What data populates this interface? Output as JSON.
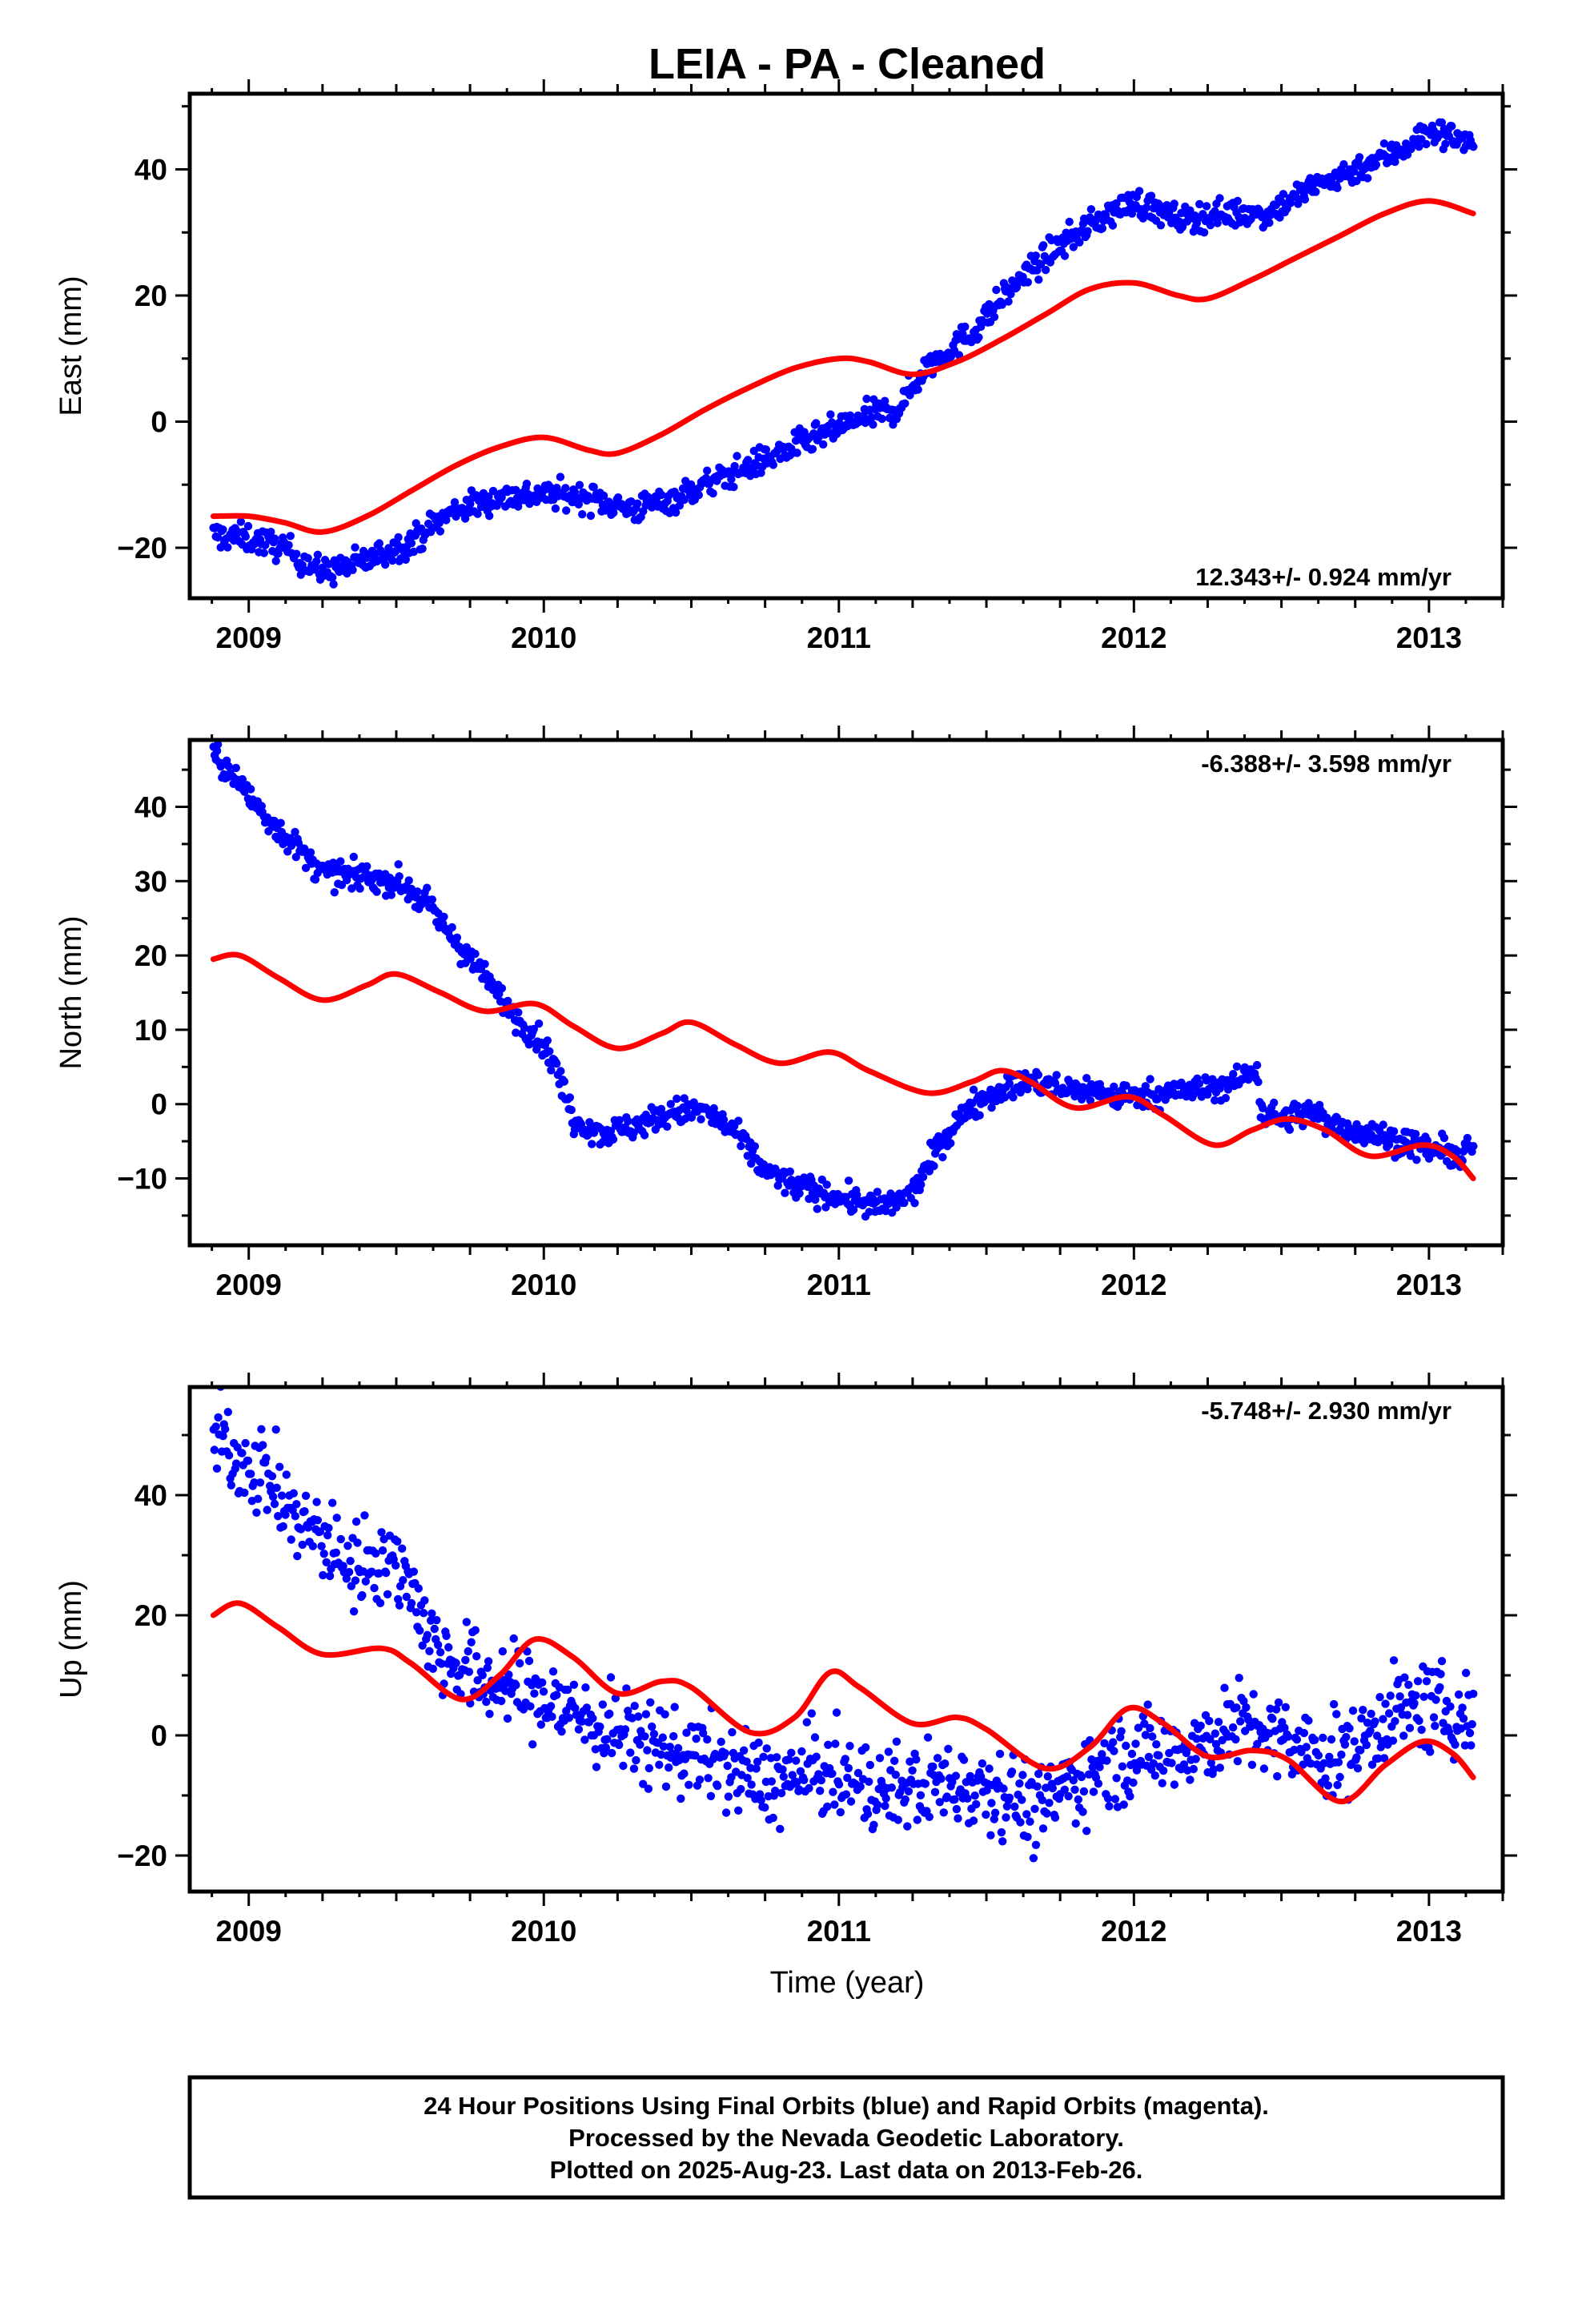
{
  "title": "LEIA  - PA - Cleaned",
  "xlabel": "Time (year)",
  "footer": {
    "lines": [
      "24 Hour Positions Using Final Orbits (blue) and Rapid Orbits (magenta).",
      "Processed by the Nevada Geodetic Laboratory.",
      "Plotted on 2025-Aug-23. Last data on 2013-Feb-26."
    ]
  },
  "colors": {
    "data": "#0000ff",
    "model": "#ff0000",
    "frame": "#000000"
  },
  "chart_data": [
    {
      "type": "scatter",
      "ylabel": "East (mm)",
      "rate_label": "12.343+/- 0.924 mm/yr",
      "xlim": [
        2008.8,
        2013.25
      ],
      "ylim": [
        -28,
        52
      ],
      "xticks": [
        2009,
        2010,
        2011,
        2012,
        2013
      ],
      "xtick_labels": [
        "2009",
        "2010",
        "2011",
        "2012",
        "2013"
      ],
      "yticks": [
        -20,
        0,
        20,
        40
      ],
      "ytick_labels": [
        "−20",
        "0",
        "20",
        "40"
      ],
      "series": [
        {
          "kind": "points",
          "x": [
            2008.88,
            2009.0,
            2009.12,
            2009.25,
            2009.4,
            2009.55,
            2009.7,
            2009.85,
            2010.0,
            2010.15,
            2010.3,
            2010.45,
            2010.6,
            2010.75,
            2010.9,
            2011.0,
            2011.1,
            2011.2,
            2011.3,
            2011.45,
            2011.6,
            2011.75,
            2011.88,
            2012.0,
            2012.15,
            2012.3,
            2012.45,
            2012.6,
            2012.75,
            2012.9,
            2013.0,
            2013.1,
            2013.15
          ],
          "y": [
            -18,
            -18.5,
            -20,
            -24,
            -22,
            -19,
            -14,
            -12,
            -11.5,
            -12,
            -14,
            -12,
            -9,
            -6,
            -3,
            -1,
            1,
            2,
            9,
            14,
            22,
            28,
            32,
            35,
            32,
            33,
            33,
            37,
            40,
            43,
            46,
            45,
            44
          ]
        },
        {
          "kind": "line",
          "x": [
            2008.88,
            2009.0,
            2009.12,
            2009.25,
            2009.4,
            2009.55,
            2009.7,
            2009.85,
            2010.0,
            2010.15,
            2010.25,
            2010.4,
            2010.55,
            2010.7,
            2010.85,
            2011.0,
            2011.1,
            2011.25,
            2011.4,
            2011.55,
            2011.7,
            2011.85,
            2012.0,
            2012.15,
            2012.25,
            2012.4,
            2012.55,
            2012.7,
            2012.85,
            2013.0,
            2013.15
          ],
          "y": [
            -15,
            -15,
            -16,
            -17.5,
            -15,
            -11,
            -7,
            -4,
            -2.5,
            -4.5,
            -5,
            -2,
            2,
            5.5,
            8.5,
            10,
            9.5,
            7.5,
            9.5,
            13,
            17,
            21,
            22,
            20,
            19.5,
            22.5,
            26,
            29.5,
            33,
            35,
            33
          ]
        }
      ]
    },
    {
      "type": "scatter",
      "ylabel": "North (mm)",
      "rate_label": "-6.388+/- 3.598 mm/yr",
      "xlim": [
        2008.8,
        2013.25
      ],
      "ylim": [
        -19,
        49
      ],
      "xticks": [
        2009,
        2010,
        2011,
        2012,
        2013
      ],
      "xtick_labels": [
        "2009",
        "2010",
        "2011",
        "2012",
        "2013"
      ],
      "yticks": [
        -10,
        0,
        10,
        20,
        30,
        40
      ],
      "ytick_labels": [
        "−10",
        "0",
        "10",
        "20",
        "30",
        "40"
      ],
      "series": [
        {
          "kind": "points",
          "x": [
            2008.88,
            2008.95,
            2009.05,
            2009.15,
            2009.25,
            2009.4,
            2009.5,
            2009.6,
            2009.7,
            2009.8,
            2009.9,
            2010.0,
            2010.05,
            2010.1,
            2010.2,
            2010.3,
            2010.45,
            2010.55,
            2010.65,
            2010.75,
            2010.85,
            2010.95,
            2011.05,
            2011.15,
            2011.25,
            2011.35,
            2011.45,
            2011.55,
            2011.65,
            2011.75,
            2011.85,
            2011.95,
            2012.1,
            2012.25,
            2012.35,
            2012.42,
            2012.43,
            2012.5,
            2012.6,
            2012.7,
            2012.8,
            2012.9,
            2013.0,
            2013.1,
            2013.15
          ],
          "y": [
            47,
            44,
            39,
            35,
            31,
            30.5,
            30,
            27,
            22,
            17,
            12,
            8,
            4,
            -2,
            -4,
            -3,
            -1,
            -1,
            -4,
            -9,
            -11,
            -12,
            -13,
            -14,
            -12,
            -5,
            0,
            2,
            3,
            2,
            2,
            1,
            1.5,
            2,
            3,
            5,
            -1,
            -2,
            -1,
            -3,
            -4,
            -5,
            -6,
            -7,
            -6
          ]
        },
        {
          "kind": "line",
          "x": [
            2008.88,
            2008.97,
            2009.1,
            2009.25,
            2009.4,
            2009.5,
            2009.65,
            2009.8,
            2009.97,
            2010.1,
            2010.25,
            2010.4,
            2010.5,
            2010.65,
            2010.8,
            2010.97,
            2011.1,
            2011.3,
            2011.45,
            2011.55,
            2011.65,
            2011.8,
            2011.98,
            2012.1,
            2012.27,
            2012.4,
            2012.52,
            2012.65,
            2012.8,
            2012.98,
            2013.08,
            2013.15
          ],
          "y": [
            19.5,
            20,
            17,
            14,
            16,
            17.5,
            15,
            12.5,
            13.5,
            10.5,
            7.5,
            9.5,
            11,
            8,
            5.5,
            7,
            4.5,
            1.5,
            3,
            4.5,
            3,
            -0.5,
            1,
            -1.5,
            -5.5,
            -3.5,
            -2,
            -3.5,
            -7,
            -5.5,
            -7,
            -10
          ]
        }
      ]
    },
    {
      "type": "scatter",
      "ylabel": "Up (mm)",
      "rate_label": "-5.748+/- 2.930 mm/yr",
      "xlim": [
        2008.8,
        2013.25
      ],
      "ylim": [
        -26,
        58
      ],
      "xticks": [
        2009,
        2010,
        2011,
        2012,
        2013
      ],
      "xtick_labels": [
        "2009",
        "2010",
        "2011",
        "2012",
        "2013"
      ],
      "yticks": [
        -20,
        0,
        20,
        40
      ],
      "ytick_labels": [
        "−20",
        "0",
        "20",
        "40"
      ],
      "series": [
        {
          "kind": "points",
          "x": [
            2008.88,
            2008.95,
            2009.05,
            2009.15,
            2009.25,
            2009.35,
            2009.45,
            2009.55,
            2009.62,
            2009.7,
            2009.8,
            2009.9,
            2010.0,
            2010.1,
            2010.2,
            2010.3,
            2010.4,
            2010.5,
            2010.6,
            2010.7,
            2010.8,
            2010.9,
            2011.0,
            2011.1,
            2011.2,
            2011.3,
            2011.4,
            2011.5,
            2011.6,
            2011.68,
            2011.75,
            2011.85,
            2011.95,
            2012.05,
            2012.15,
            2012.25,
            2012.35,
            2012.45,
            2012.55,
            2012.65,
            2012.75,
            2012.85,
            2012.95,
            2013.05,
            2013.15
          ],
          "y": [
            50,
            47,
            44,
            36,
            33,
            28,
            30,
            26,
            15,
            12,
            9,
            8,
            6,
            4,
            1,
            0,
            -2,
            -3,
            -5,
            -7,
            -8,
            -6,
            -7,
            -9,
            -9,
            -8,
            -8,
            -8,
            -10,
            -13,
            -9,
            -6,
            -4,
            -3,
            -2,
            -1,
            2,
            0,
            -2,
            -4,
            -2,
            3,
            5,
            4,
            3
          ]
        },
        {
          "kind": "line",
          "x": [
            2008.88,
            2008.97,
            2009.1,
            2009.25,
            2009.45,
            2009.55,
            2009.72,
            2009.85,
            2009.97,
            2010.1,
            2010.25,
            2010.4,
            2010.5,
            2010.7,
            2010.85,
            2010.97,
            2011.07,
            2011.25,
            2011.4,
            2011.5,
            2011.7,
            2011.85,
            2011.98,
            2012.1,
            2012.25,
            2012.4,
            2012.52,
            2012.7,
            2012.85,
            2012.98,
            2013.08,
            2013.15
          ],
          "y": [
            20,
            22,
            18,
            13.5,
            14.5,
            12,
            6,
            10,
            16,
            13,
            7,
            9,
            8,
            0.5,
            3,
            10.5,
            8,
            2,
            3,
            1,
            -5.5,
            -2,
            4.5,
            2,
            -3.5,
            -2.5,
            -4,
            -11,
            -5,
            -1,
            -3,
            -7
          ]
        }
      ]
    }
  ]
}
